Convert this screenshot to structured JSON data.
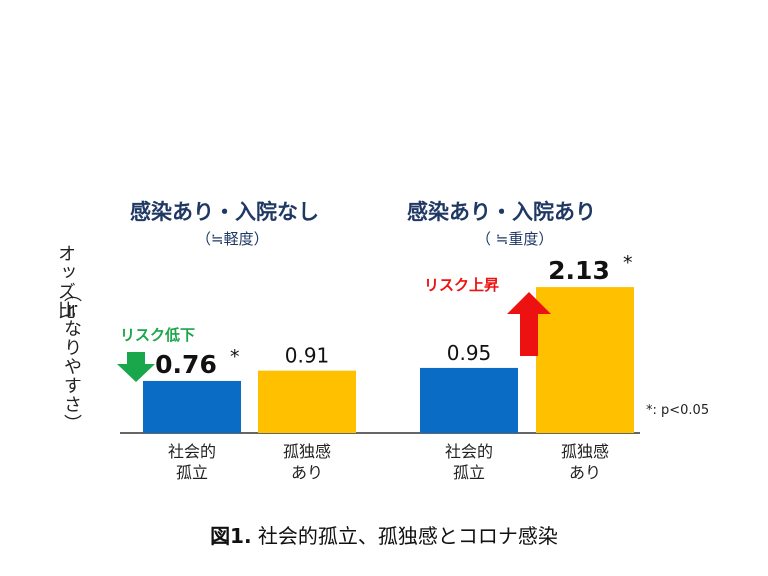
{
  "chart_data": {
    "type": "bar",
    "ylabel": "オッズ比",
    "ylabel_sub": "（≒なりやすさ）",
    "groups": [
      {
        "title": "感染あり・入院なし",
        "subtitle": "（≒軽度）",
        "bars": [
          {
            "category": "社会的孤立",
            "line1": "社会的",
            "line2": "孤立",
            "value": 0.76,
            "label": "0.76",
            "significant": "*",
            "color": "#0a6cc4",
            "emphasis": true
          },
          {
            "category": "孤独感あり",
            "line1": "孤独感",
            "line2": "あり",
            "value": 0.91,
            "label": "0.91",
            "significant": "",
            "color": "#ffc000",
            "emphasis": false
          }
        ],
        "annotation": {
          "text": "リスク低下",
          "color": "#1aa64a",
          "direction": "down"
        }
      },
      {
        "title": "感染あり・入院あり",
        "subtitle": "（ ≒重度）",
        "bars": [
          {
            "category": "社会的孤立",
            "line1": "社会的",
            "line2": "孤立",
            "value": 0.95,
            "label": "0.95",
            "significant": "",
            "color": "#0a6cc4",
            "emphasis": false
          },
          {
            "category": "孤独感あり",
            "line1": "孤独感",
            "line2": "あり",
            "value": 2.13,
            "label": "2.13",
            "significant": "*",
            "color": "#ffc000",
            "emphasis": true
          }
        ],
        "annotation": {
          "text": "リスク上昇",
          "color": "#ee1111",
          "direction": "up"
        }
      }
    ],
    "note": "*: p<0.05"
  },
  "caption": {
    "prefix": "図1.",
    "text": " 社会的孤立、孤独感とコロナ感染"
  }
}
